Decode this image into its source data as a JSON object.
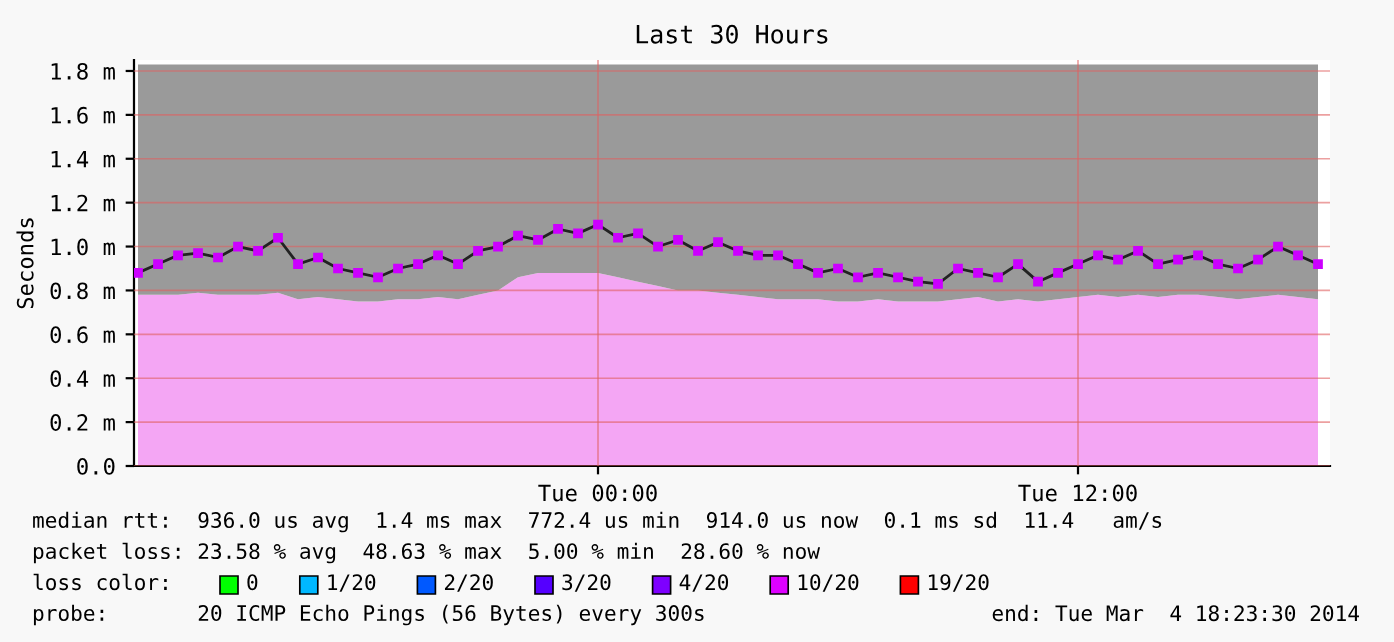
{
  "chart_data": {
    "type": "line",
    "title": "Last 30 Hours",
    "ylabel": "Seconds",
    "x": [
      "2014-03-03T12:30",
      "2014-03-03T13:00",
      "2014-03-03T13:30",
      "2014-03-03T14:00",
      "2014-03-03T14:30",
      "2014-03-03T15:00",
      "2014-03-03T15:30",
      "2014-03-03T16:00",
      "2014-03-03T16:30",
      "2014-03-03T17:00",
      "2014-03-03T17:30",
      "2014-03-03T18:00",
      "2014-03-03T18:30",
      "2014-03-03T19:00",
      "2014-03-03T19:30",
      "2014-03-03T20:00",
      "2014-03-03T20:30",
      "2014-03-03T21:00",
      "2014-03-03T21:30",
      "2014-03-03T22:00",
      "2014-03-03T22:30",
      "2014-03-03T23:00",
      "2014-03-03T23:30",
      "2014-03-04T00:00",
      "2014-03-04T00:30",
      "2014-03-04T01:00",
      "2014-03-04T01:30",
      "2014-03-04T02:00",
      "2014-03-04T02:30",
      "2014-03-04T03:00",
      "2014-03-04T03:30",
      "2014-03-04T04:00",
      "2014-03-04T04:30",
      "2014-03-04T05:00",
      "2014-03-04T05:30",
      "2014-03-04T06:00",
      "2014-03-04T06:30",
      "2014-03-04T07:00",
      "2014-03-04T07:30",
      "2014-03-04T08:00",
      "2014-03-04T08:30",
      "2014-03-04T09:00",
      "2014-03-04T09:30",
      "2014-03-04T10:00",
      "2014-03-04T10:30",
      "2014-03-04T11:00",
      "2014-03-04T11:30",
      "2014-03-04T12:00",
      "2014-03-04T12:30",
      "2014-03-04T13:00",
      "2014-03-04T13:30",
      "2014-03-04T14:00",
      "2014-03-04T14:30",
      "2014-03-04T15:00",
      "2014-03-04T15:30",
      "2014-03-04T16:00",
      "2014-03-04T16:30",
      "2014-03-04T17:00",
      "2014-03-04T17:30",
      "2014-03-04T18:00"
    ],
    "series": [
      {
        "type": "area",
        "color": "#f4a6f4",
        "values": [
          0.78,
          0.78,
          0.78,
          0.79,
          0.78,
          0.78,
          0.78,
          0.79,
          0.76,
          0.77,
          0.76,
          0.75,
          0.75,
          0.76,
          0.76,
          0.77,
          0.76,
          0.78,
          0.8,
          0.86,
          0.88,
          0.88,
          0.88,
          0.88,
          0.86,
          0.84,
          0.82,
          0.8,
          0.8,
          0.79,
          0.78,
          0.77,
          0.76,
          0.76,
          0.76,
          0.75,
          0.75,
          0.76,
          0.75,
          0.75,
          0.75,
          0.76,
          0.77,
          0.75,
          0.76,
          0.75,
          0.76,
          0.77,
          0.78,
          0.77,
          0.78,
          0.77,
          0.78,
          0.78,
          0.77,
          0.76,
          0.77,
          0.78,
          0.77,
          0.76
        ]
      },
      {
        "type": "area",
        "color": "#9a9a9a",
        "values": [
          1.05,
          1.05,
          1.05,
          1.04,
          1.05,
          1.05,
          1.05,
          1.04,
          1.07,
          1.06,
          1.07,
          1.08,
          1.08,
          1.07,
          1.07,
          1.06,
          1.07,
          1.05,
          1.03,
          0.97,
          0.95,
          0.95,
          0.95,
          0.95,
          0.97,
          0.99,
          1.01,
          1.03,
          1.03,
          1.04,
          1.05,
          1.06,
          1.07,
          1.07,
          1.07,
          1.08,
          1.08,
          1.07,
          1.08,
          1.08,
          1.08,
          1.07,
          1.06,
          1.08,
          1.07,
          1.08,
          1.07,
          1.06,
          1.05,
          1.06,
          1.05,
          1.06,
          1.05,
          1.05,
          1.06,
          1.07,
          1.06,
          1.05,
          1.06,
          1.07
        ]
      },
      {
        "color": "#cc00ff",
        "marker": "square",
        "values": [
          0.88,
          0.92,
          0.96,
          0.97,
          0.95,
          1.0,
          0.98,
          1.04,
          0.92,
          0.95,
          0.9,
          0.88,
          0.86,
          0.9,
          0.92,
          0.96,
          0.92,
          0.98,
          1.0,
          1.05,
          1.03,
          1.08,
          1.06,
          1.1,
          1.04,
          1.06,
          1.0,
          1.03,
          0.98,
          1.02,
          0.98,
          0.96,
          0.96,
          0.92,
          0.88,
          0.9,
          0.86,
          0.88,
          0.86,
          0.84,
          0.83,
          0.9,
          0.88,
          0.86,
          0.92,
          0.84,
          0.88,
          0.92,
          0.96,
          0.94,
          0.98,
          0.92,
          0.94,
          0.96,
          0.92,
          0.9,
          0.94,
          1.0,
          0.96,
          0.92
        ]
      }
    ],
    "xlim": [
      "2014-03-03T12:24",
      "2014-03-04T18:18"
    ],
    "xticks": [
      {
        "value": "2014-03-04T00:00",
        "label": "Tue 00:00"
      },
      {
        "value": "2014-03-04T12:00",
        "label": "Tue 12:00"
      }
    ],
    "ylim": [
      0,
      1.85
    ],
    "yticks": [
      {
        "value": 0,
        "label": "0.0"
      },
      {
        "value": 0.2,
        "label": "0.2 m"
      },
      {
        "value": 0.4,
        "label": "0.4 m"
      },
      {
        "value": 0.6,
        "label": "0.6 m"
      },
      {
        "value": 0.8,
        "label": "0.8 m"
      },
      {
        "value": 1.0,
        "label": "1.0 m"
      },
      {
        "value": 1.2,
        "label": "1.2 m"
      },
      {
        "value": 1.4,
        "label": "1.4 m"
      },
      {
        "value": 1.6,
        "label": "1.6 m"
      },
      {
        "value": 1.8,
        "label": "1.8 m"
      }
    ],
    "grid": true,
    "stacked": true,
    "annotations": [
      "median rtt:  936.0 us avg  1.4 ms max  772.4 us min  914.0 us now  0.1 ms sd  11.4   am/s",
      "packet loss: 23.58 % avg  48.63 % max  5.00 % min  28.60 % now",
      "loss color:",
      "0",
      "1/20",
      "2/20",
      "3/20",
      "4/20",
      "10/20",
      "19/20",
      "probe:       20 ICMP Echo Pings (56 Bytes) every 300s",
      "end: Tue Mar  4 18:23:30 2014"
    ]
  }
}
